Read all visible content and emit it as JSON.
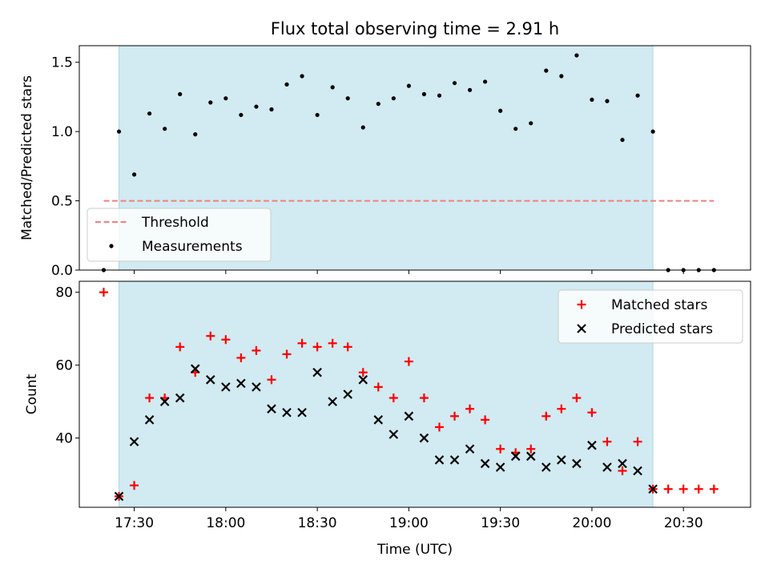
{
  "chart_data": [
    {
      "type": "scatter",
      "title": "Flux total observing time = 2.91 h",
      "ylabel": "Matched/Predicted stars",
      "xlabel": "",
      "ylim": [
        0,
        1.62
      ],
      "yticks": [
        0.0,
        0.5,
        1.0,
        1.5
      ],
      "ytick_labels": [
        "0.0",
        "0.5",
        "1.0",
        "1.5"
      ],
      "grid": false,
      "legend_position": "bottom-left",
      "shaded_interval": [
        "17:25",
        "20:20"
      ],
      "shade_color": "#add8e6",
      "threshold": {
        "name": "Threshold",
        "value": 0.5,
        "x_range": [
          "17:20",
          "20:40"
        ],
        "color": "#f08080",
        "style": "dashed"
      },
      "series": [
        {
          "name": "Measurements",
          "color": "#000000",
          "marker": "dot",
          "x": [
            "17:20",
            "17:25",
            "17:30",
            "17:35",
            "17:40",
            "17:45",
            "17:50",
            "17:55",
            "18:00",
            "18:05",
            "18:10",
            "18:15",
            "18:20",
            "18:25",
            "18:30",
            "18:35",
            "18:40",
            "18:45",
            "18:50",
            "18:55",
            "19:00",
            "19:05",
            "19:10",
            "19:15",
            "19:20",
            "19:25",
            "19:30",
            "19:35",
            "19:40",
            "19:45",
            "19:50",
            "19:55",
            "20:00",
            "20:05",
            "20:10",
            "20:15",
            "20:20",
            "20:25",
            "20:30",
            "20:35",
            "20:40"
          ],
          "y": [
            0.0,
            1.0,
            0.69,
            1.13,
            1.02,
            1.27,
            0.98,
            1.21,
            1.24,
            1.12,
            1.18,
            1.16,
            1.34,
            1.4,
            1.12,
            1.32,
            1.24,
            1.03,
            1.2,
            1.24,
            1.33,
            1.27,
            1.26,
            1.35,
            1.3,
            1.36,
            1.15,
            1.02,
            1.06,
            1.44,
            1.4,
            1.55,
            1.23,
            1.22,
            0.94,
            1.26,
            1.0,
            0.0,
            0.0,
            0.0,
            0.0
          ]
        }
      ]
    },
    {
      "type": "scatter",
      "title": "",
      "ylabel": "Count",
      "xlabel": "Time (UTC)",
      "ylim": [
        21,
        83
      ],
      "yticks": [
        40,
        60,
        80
      ],
      "ytick_labels": [
        "40",
        "60",
        "80"
      ],
      "xlim": [
        "17:12",
        "20:52"
      ],
      "xticks": [
        "17:30",
        "18:00",
        "18:30",
        "19:00",
        "19:30",
        "20:00",
        "20:30"
      ],
      "grid": false,
      "legend_position": "top-right",
      "shaded_interval": [
        "17:25",
        "20:20"
      ],
      "shade_color": "#add8e6",
      "series": [
        {
          "name": "Matched stars",
          "color": "#ff0000",
          "marker": "plus",
          "x": [
            "17:20",
            "17:25",
            "17:30",
            "17:35",
            "17:40",
            "17:45",
            "17:50",
            "17:55",
            "18:00",
            "18:05",
            "18:10",
            "18:15",
            "18:20",
            "18:25",
            "18:30",
            "18:35",
            "18:40",
            "18:45",
            "18:50",
            "18:55",
            "19:00",
            "19:05",
            "19:10",
            "19:15",
            "19:20",
            "19:25",
            "19:30",
            "19:35",
            "19:40",
            "19:45",
            "19:50",
            "19:55",
            "20:00",
            "20:05",
            "20:10",
            "20:15",
            "20:20",
            "20:25",
            "20:30",
            "20:35",
            "20:40"
          ],
          "y": [
            80,
            24,
            27,
            51,
            51,
            65,
            58,
            68,
            67,
            62,
            64,
            56,
            63,
            66,
            65,
            66,
            65,
            58,
            54,
            51,
            61,
            51,
            43,
            46,
            48,
            45,
            37,
            36,
            37,
            46,
            48,
            51,
            47,
            39,
            31,
            39,
            26,
            26,
            26,
            26,
            26
          ]
        },
        {
          "name": "Predicted stars",
          "color": "#000000",
          "marker": "x",
          "x": [
            "17:25",
            "17:30",
            "17:35",
            "17:40",
            "17:45",
            "17:50",
            "17:55",
            "18:00",
            "18:05",
            "18:10",
            "18:15",
            "18:20",
            "18:25",
            "18:30",
            "18:35",
            "18:40",
            "18:45",
            "18:50",
            "18:55",
            "19:00",
            "19:05",
            "19:10",
            "19:15",
            "19:20",
            "19:25",
            "19:30",
            "19:35",
            "19:40",
            "19:45",
            "19:50",
            "19:55",
            "20:00",
            "20:05",
            "20:10",
            "20:15",
            "20:20"
          ],
          "y": [
            24,
            39,
            45,
            50,
            51,
            59,
            56,
            54,
            55,
            54,
            48,
            47,
            47,
            58,
            50,
            52,
            56,
            45,
            41,
            46,
            40,
            34,
            34,
            37,
            33,
            32,
            35,
            35,
            32,
            34,
            33,
            38,
            32,
            33,
            31,
            26
          ]
        }
      ]
    }
  ]
}
